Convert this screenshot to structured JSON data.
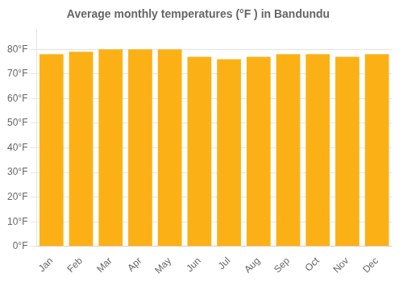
{
  "chart_data": {
    "type": "bar",
    "title": "Average monthly temperatures (°F ) in Bandundu",
    "categories": [
      "Jan",
      "Feb",
      "Mar",
      "Apr",
      "May",
      "Jun",
      "Jul",
      "Aug",
      "Sep",
      "Oct",
      "Nov",
      "Dec"
    ],
    "values": [
      78,
      79,
      80,
      80,
      80,
      77,
      76,
      77,
      78,
      78,
      77,
      78
    ],
    "color": "#FBB116",
    "ylim": [
      0,
      88
    ],
    "yticks": [
      {
        "value": 0,
        "label": "0°F"
      },
      {
        "value": 10,
        "label": "10°F"
      },
      {
        "value": 20,
        "label": "20°F"
      },
      {
        "value": 30,
        "label": "30°F"
      },
      {
        "value": 40,
        "label": "40°F"
      },
      {
        "value": 50,
        "label": "50°F"
      },
      {
        "value": 60,
        "label": "60°F"
      },
      {
        "value": 70,
        "label": "70°F"
      },
      {
        "value": 80,
        "label": "80°F"
      }
    ],
    "grid": true
  }
}
